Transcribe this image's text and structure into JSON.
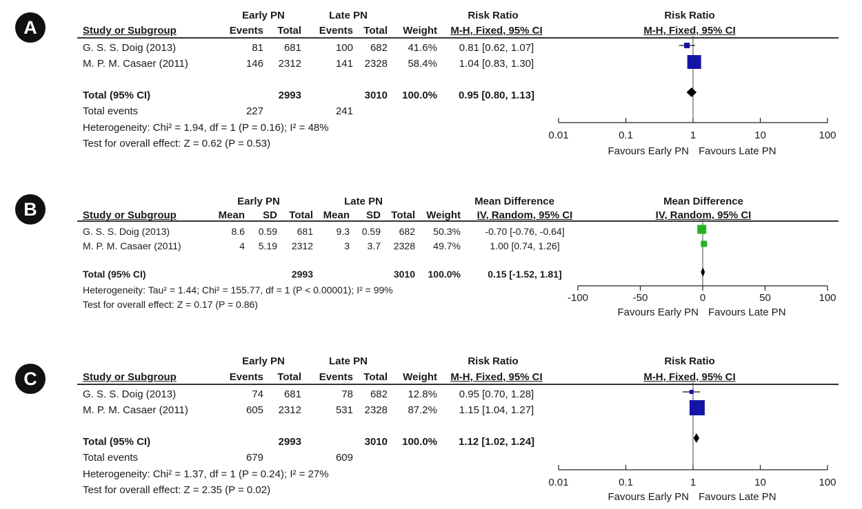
{
  "chart_data": [
    {
      "type": "forest",
      "panel_label": "A",
      "group_headers": [
        "Early PN",
        "Late PN"
      ],
      "effect_header": "Risk Ratio",
      "method": "M-H, Fixed, 95% CI",
      "plot_header": "Risk Ratio",
      "plot_method": "M-H, Fixed, 95% CI",
      "col_headers": [
        "Study or Subgroup",
        "Events",
        "Total",
        "Events",
        "Total",
        "Weight",
        "M-H, Fixed, 95% CI"
      ],
      "studies": [
        {
          "name": "G. S. S. Doig (2013)",
          "cells": [
            "81",
            "681",
            "100",
            "682",
            "41.6%"
          ],
          "ci_text": "0.81 [0.62, 1.07]",
          "est": 0.81,
          "lo": 0.62,
          "hi": 1.07,
          "weight": 41.6
        },
        {
          "name": "M. P. M. Casaer (2011)",
          "cells": [
            "146",
            "2312",
            "141",
            "2328",
            "58.4%"
          ],
          "ci_text": "1.04 [0.83, 1.30]",
          "est": 1.04,
          "lo": 0.83,
          "hi": 1.3,
          "weight": 58.4
        }
      ],
      "total": {
        "name": "Total (95% CI)",
        "cells": [
          "",
          "2993",
          "",
          "3010",
          "100.0%"
        ],
        "ci_text": "0.95 [0.80, 1.13]",
        "est": 0.95,
        "lo": 0.8,
        "hi": 1.13
      },
      "events_row": {
        "name": "Total events",
        "cells": [
          "227",
          "",
          "241",
          "",
          ""
        ]
      },
      "heterogeneity": "Heterogeneity: Chi² = 1.94, df = 1 (P = 0.16); I² = 48%",
      "overall": "Test for overall effect: Z = 0.62 (P = 0.53)",
      "scale": "log",
      "null_value": 1,
      "xlim": [
        0.01,
        100
      ],
      "ticks": [
        0.01,
        0.1,
        1,
        10,
        100
      ],
      "tick_labels": [
        "0.01",
        "0.1",
        "1",
        "10",
        "100"
      ],
      "favours": [
        "Favours Early PN",
        "Favours Late PN"
      ],
      "colors": {
        "study": "#1414a8",
        "total": "#000000"
      }
    },
    {
      "type": "forest",
      "panel_label": "B",
      "group_headers": [
        "Early PN",
        "Late PN"
      ],
      "effect_header": "Mean Difference",
      "method": "IV, Random, 95% CI",
      "plot_header": "Mean Difference",
      "plot_method": "IV, Random, 95% CI",
      "col_headers": [
        "Study or Subgroup",
        "Mean",
        "SD",
        "Total",
        "Mean",
        "SD",
        "Total",
        "Weight",
        "IV, Random, 95% CI"
      ],
      "studies": [
        {
          "name": "G. S. S. Doig (2013)",
          "cells": [
            "8.6",
            "0.59",
            "681",
            "9.3",
            "0.59",
            "682",
            "50.3%"
          ],
          "ci_text": "-0.70 [-0.76, -0.64]",
          "est": -0.7,
          "lo": -0.76,
          "hi": -0.64,
          "weight": 50.3
        },
        {
          "name": "M. P. M. Casaer (2011)",
          "cells": [
            "4",
            "5.19",
            "2312",
            "3",
            "3.7",
            "2328",
            "49.7%"
          ],
          "ci_text": "1.00 [0.74, 1.26]",
          "est": 1.0,
          "lo": 0.74,
          "hi": 1.26,
          "weight": 49.7
        }
      ],
      "total": {
        "name": "Total (95% CI)",
        "cells": [
          "",
          "",
          "2993",
          "",
          "",
          "3010",
          "100.0%"
        ],
        "ci_text": "0.15 [-1.52, 1.81]",
        "est": 0.15,
        "lo": -1.52,
        "hi": 1.81
      },
      "heterogeneity": "Heterogeneity: Tau² = 1.44; Chi² = 155.77, df = 1 (P < 0.00001); I² = 99%",
      "overall": "Test for overall effect: Z = 0.17 (P = 0.86)",
      "scale": "linear",
      "null_value": 0,
      "xlim": [
        -100,
        100
      ],
      "ticks": [
        -100,
        -50,
        0,
        50,
        100
      ],
      "tick_labels": [
        "-100",
        "-50",
        "0",
        "50",
        "100"
      ],
      "favours": [
        "Favours Early PN",
        "Favours Late PN"
      ],
      "colors": {
        "study": "#22b422",
        "total": "#000000"
      }
    },
    {
      "type": "forest",
      "panel_label": "C",
      "group_headers": [
        "Early PN",
        "Late PN"
      ],
      "effect_header": "Risk Ratio",
      "method": "M-H, Fixed, 95% CI",
      "plot_header": "Risk Ratio",
      "plot_method": "M-H, Fixed, 95% CI",
      "col_headers": [
        "Study or Subgroup",
        "Events",
        "Total",
        "Events",
        "Total",
        "Weight",
        "M-H, Fixed, 95% CI"
      ],
      "studies": [
        {
          "name": "G. S. S. Doig (2013)",
          "cells": [
            "74",
            "681",
            "78",
            "682",
            "12.8%"
          ],
          "ci_text": "0.95 [0.70, 1.28]",
          "est": 0.95,
          "lo": 0.7,
          "hi": 1.28,
          "weight": 12.8
        },
        {
          "name": "M. P. M. Casaer (2011)",
          "cells": [
            "605",
            "2312",
            "531",
            "2328",
            "87.2%"
          ],
          "ci_text": "1.15 [1.04, 1.27]",
          "est": 1.15,
          "lo": 1.04,
          "hi": 1.27,
          "weight": 87.2
        }
      ],
      "total": {
        "name": "Total (95% CI)",
        "cells": [
          "",
          "2993",
          "",
          "3010",
          "100.0%"
        ],
        "ci_text": "1.12 [1.02, 1.24]",
        "est": 1.12,
        "lo": 1.02,
        "hi": 1.24
      },
      "events_row": {
        "name": "Total events",
        "cells": [
          "679",
          "",
          "609",
          "",
          ""
        ]
      },
      "heterogeneity": "Heterogeneity: Chi² = 1.37, df = 1 (P = 0.24); I² = 27%",
      "overall": "Test for overall effect: Z = 2.35 (P = 0.02)",
      "scale": "log",
      "null_value": 1,
      "xlim": [
        0.01,
        100
      ],
      "ticks": [
        0.01,
        0.1,
        1,
        10,
        100
      ],
      "tick_labels": [
        "0.01",
        "0.1",
        "1",
        "10",
        "100"
      ],
      "favours": [
        "Favours Early PN",
        "Favours Late PN"
      ],
      "colors": {
        "study": "#1414a8",
        "total": "#000000"
      }
    }
  ]
}
